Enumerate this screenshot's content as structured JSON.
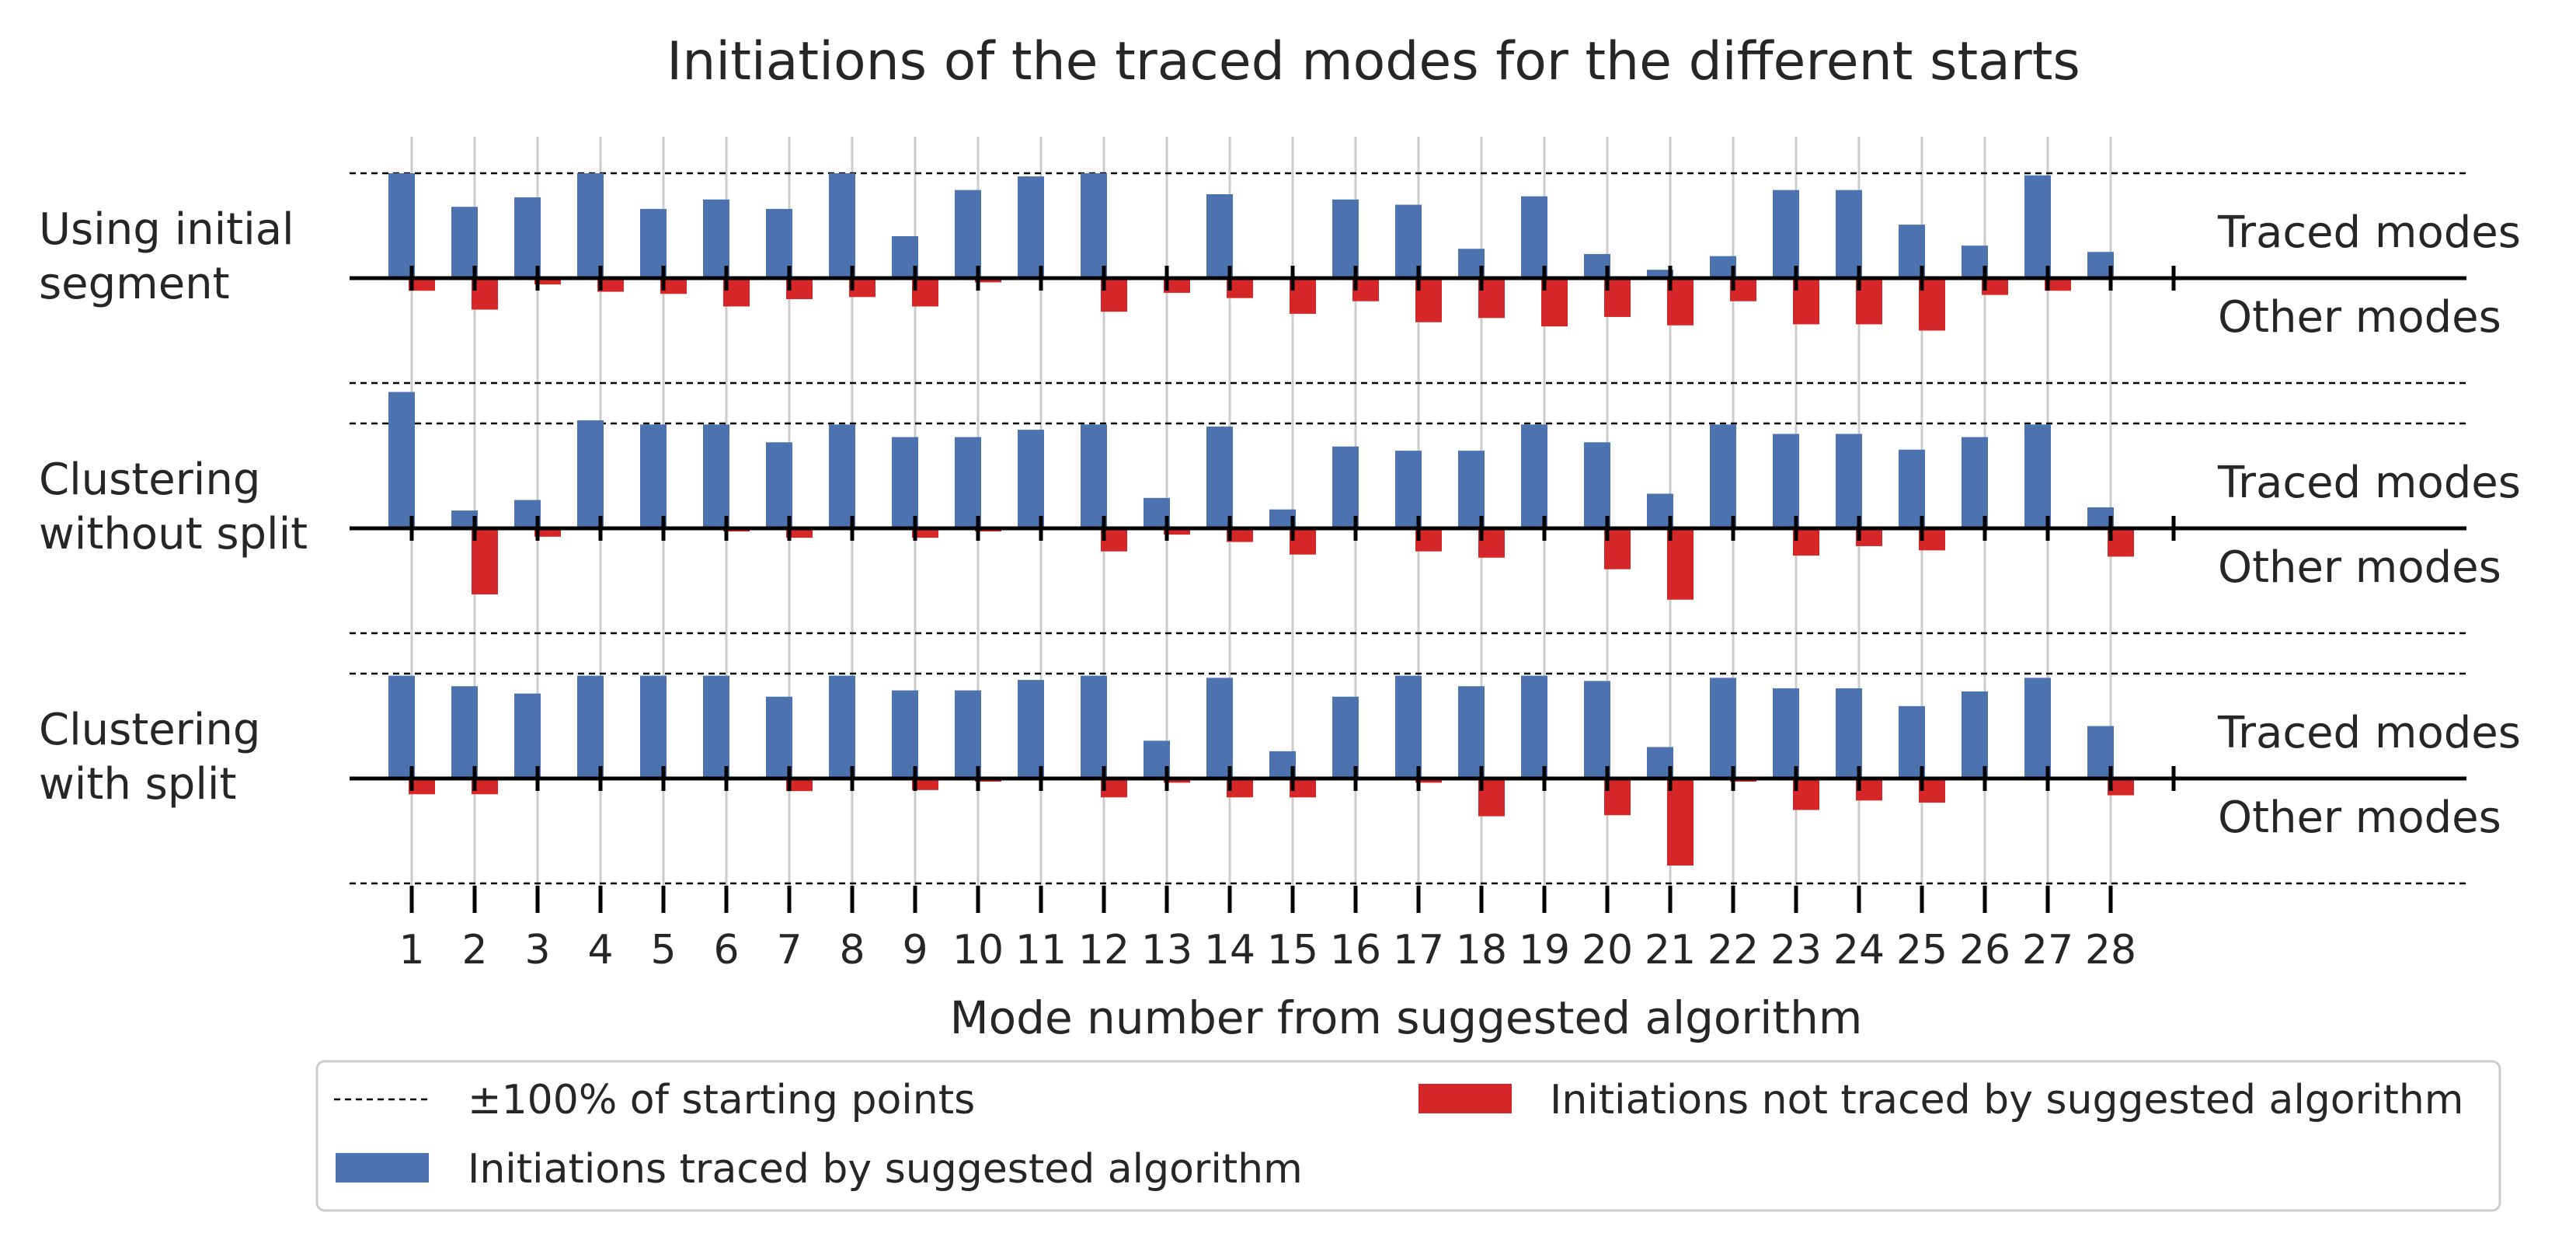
{
  "chart_data": {
    "type": "bar",
    "title": "Initiations of the traced modes for the different starts",
    "xlabel": "Mode number from suggested algorithm",
    "categories": [
      "1",
      "2",
      "3",
      "4",
      "5",
      "6",
      "7",
      "8",
      "9",
      "10",
      "11",
      "12",
      "13",
      "14",
      "15",
      "16",
      "17",
      "18",
      "19",
      "20",
      "21",
      "22",
      "23",
      "24",
      "25",
      "26",
      "27",
      "28"
    ],
    "ylim": [
      -100,
      100
    ],
    "grid": "vertical",
    "legend_position": "bottom",
    "legend": {
      "reference_line": "±100% of starting points",
      "traced": "Initiations traced by suggested algorithm",
      "not_traced": "Initiations not traced by suggested algorithm"
    },
    "colors": {
      "traced": "#4c72b0",
      "not_traced": "#d62728",
      "axis": "#000000",
      "grid": "#cccccc"
    },
    "panels": [
      {
        "row_label": [
          "Using initial",
          "segment"
        ],
        "upper_label": "Traced modes",
        "lower_label": "Other modes",
        "traced": [
          100,
          68,
          77,
          100,
          66,
          75,
          66,
          100,
          40,
          84,
          97,
          100,
          0,
          80,
          0,
          75,
          70,
          28,
          78,
          23,
          8,
          21,
          84,
          84,
          51,
          31,
          98,
          25
        ],
        "not_traced": [
          12,
          30,
          6,
          13,
          15,
          27,
          20,
          18,
          27,
          4,
          0,
          32,
          14,
          19,
          34,
          22,
          42,
          38,
          46,
          37,
          45,
          22,
          44,
          44,
          50,
          16,
          12,
          0
        ]
      },
      {
        "row_label": [
          "Clustering",
          "without split"
        ],
        "upper_label": "Traced modes",
        "lower_label": "Other modes",
        "traced": [
          130,
          17,
          27,
          103,
          99,
          99,
          82,
          99,
          87,
          87,
          94,
          99,
          29,
          97,
          18,
          78,
          74,
          74,
          99,
          82,
          33,
          99,
          90,
          90,
          75,
          87,
          99,
          20
        ],
        "not_traced": [
          0,
          63,
          8,
          0,
          0,
          3,
          9,
          0,
          9,
          3,
          0,
          22,
          6,
          13,
          25,
          0,
          22,
          28,
          0,
          39,
          68,
          0,
          26,
          17,
          21,
          0,
          0,
          27
        ]
      },
      {
        "row_label": [
          "Clustering",
          "with split"
        ],
        "upper_label": "Traced modes",
        "lower_label": "Other modes",
        "traced": [
          98,
          88,
          81,
          98,
          98,
          98,
          78,
          98,
          84,
          84,
          94,
          98,
          36,
          96,
          26,
          78,
          98,
          88,
          98,
          93,
          30,
          96,
          86,
          86,
          69,
          83,
          96,
          50
        ],
        "not_traced": [
          15,
          15,
          0,
          0,
          0,
          0,
          12,
          0,
          11,
          3,
          0,
          18,
          4,
          18,
          18,
          0,
          4,
          36,
          0,
          35,
          83,
          3,
          30,
          21,
          23,
          0,
          0,
          16
        ]
      }
    ]
  }
}
